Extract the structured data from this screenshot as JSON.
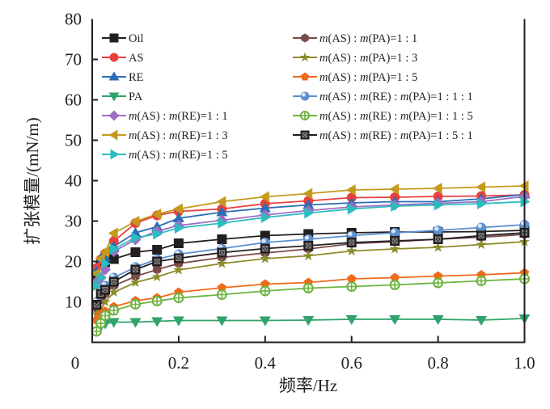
{
  "chart_data": {
    "type": "line",
    "title": "",
    "xlabel": "频率/Hz",
    "ylabel": "扩张模量/(mN/m)",
    "xlim": [
      0,
      1.0
    ],
    "ylim": [
      0,
      80
    ],
    "xticks": [
      0,
      0.2,
      0.4,
      0.6,
      0.8,
      1.0
    ],
    "xtick_labels": [
      "0",
      "0.2",
      "0.4",
      "0.6",
      "0.8",
      "1.0"
    ],
    "yticks": [
      10,
      20,
      30,
      40,
      50,
      60,
      70,
      80
    ],
    "ytick_labels": [
      "10",
      "20",
      "30",
      "40",
      "50",
      "60",
      "70",
      "80"
    ],
    "grid": false,
    "legend_position": "top",
    "x": [
      0.01,
      0.02,
      0.03,
      0.05,
      0.1,
      0.15,
      0.2,
      0.3,
      0.4,
      0.5,
      0.6,
      0.7,
      0.8,
      0.9,
      1.0
    ],
    "series": [
      {
        "name": "Oil",
        "legend_parts": [
          {
            "t": "Oil",
            "i": false
          }
        ],
        "color": "#231f20",
        "marker": "square",
        "values": [
          16.0,
          19.0,
          19.8,
          20.6,
          22.3,
          22.9,
          24.5,
          25.5,
          26.4,
          26.8,
          27.1,
          27.3,
          27.3,
          27.4,
          27.7
        ]
      },
      {
        "name": "AS",
        "legend_parts": [
          {
            "t": "AS",
            "i": false
          }
        ],
        "color": "#e8403e",
        "marker": "circle",
        "values": [
          18.4,
          20.5,
          22.0,
          25.0,
          29.5,
          31.4,
          32.4,
          33.0,
          34.3,
          35.0,
          35.8,
          35.9,
          36.1,
          36.2,
          36.5
        ]
      },
      {
        "name": "RE",
        "legend_parts": [
          {
            "t": "RE",
            "i": false
          }
        ],
        "color": "#2b6cb5",
        "marker": "triangle-up",
        "values": [
          17.5,
          20.8,
          21.0,
          23.7,
          27.1,
          28.6,
          30.7,
          32.2,
          33.2,
          34.0,
          34.5,
          34.8,
          34.8,
          35.5,
          36.6
        ]
      },
      {
        "name": "PA",
        "legend_parts": [
          {
            "t": "PA",
            "i": false
          }
        ],
        "color": "#2fa36b",
        "marker": "triangle-down",
        "values": [
          2.8,
          4.0,
          4.6,
          5.0,
          5.0,
          5.2,
          5.4,
          5.4,
          5.4,
          5.5,
          5.7,
          5.7,
          5.7,
          5.5,
          5.9
        ]
      },
      {
        "name": "m(AS):m(RE)=1:1",
        "legend_parts": [
          {
            "t": "m",
            "i": true
          },
          {
            "t": "(AS) : ",
            "i": false
          },
          {
            "t": "m",
            "i": true
          },
          {
            "t": "(RE)=1 : 1",
            "i": false
          }
        ],
        "color": "#9b6fc4",
        "marker": "diamond",
        "values": [
          15.0,
          16.0,
          18.0,
          22.5,
          25.4,
          27.5,
          28.9,
          30.2,
          31.5,
          32.6,
          33.5,
          34.0,
          34.4,
          34.8,
          36.1
        ]
      },
      {
        "name": "m(AS):m(RE)=1:3",
        "legend_parts": [
          {
            "t": "m",
            "i": true
          },
          {
            "t": "(AS) : ",
            "i": false
          },
          {
            "t": "m",
            "i": true
          },
          {
            "t": "(RE)=1 : 3",
            "i": false
          }
        ],
        "color": "#c59a1c",
        "marker": "triangle-left",
        "values": [
          17.0,
          20.7,
          22.4,
          27.0,
          29.9,
          31.7,
          33.0,
          34.8,
          36.0,
          36.8,
          37.7,
          37.9,
          38.1,
          38.4,
          38.7
        ]
      },
      {
        "name": "m(AS):m(RE)=1:5",
        "legend_parts": [
          {
            "t": "m",
            "i": true
          },
          {
            "t": "(AS) : ",
            "i": false
          },
          {
            "t": "m",
            "i": true
          },
          {
            "t": "(RE)=1 : 5",
            "i": false
          }
        ],
        "color": "#2bbcc0",
        "marker": "triangle-right",
        "values": [
          14.0,
          16.0,
          19.5,
          23.1,
          25.9,
          26.8,
          28.3,
          29.5,
          30.9,
          32.0,
          33.0,
          33.7,
          34.0,
          34.3,
          34.8
        ]
      },
      {
        "name": "m(AS):m(PA)=1:1",
        "legend_parts": [
          {
            "t": "m",
            "i": true
          },
          {
            "t": "(AS) : ",
            "i": false
          },
          {
            "t": "m",
            "i": true
          },
          {
            "t": "(PA)=1 : 1",
            "i": false
          }
        ],
        "color": "#7a4a4a",
        "marker": "hexagon",
        "values": [
          8.4,
          10.5,
          12.0,
          14.0,
          16.3,
          18.0,
          19.5,
          21.0,
          22.1,
          23.1,
          24.4,
          24.9,
          25.5,
          26.0,
          26.7
        ]
      },
      {
        "name": "m(AS):m(PA)=1:3",
        "legend_parts": [
          {
            "t": "m",
            "i": true
          },
          {
            "t": "(AS) : ",
            "i": false
          },
          {
            "t": "m",
            "i": true
          },
          {
            "t": "(PA)=1 : 3",
            "i": false
          }
        ],
        "color": "#8c8c2a",
        "marker": "star",
        "values": [
          7.0,
          8.0,
          10.0,
          12.4,
          14.8,
          16.2,
          17.9,
          19.5,
          20.7,
          21.4,
          22.6,
          23.1,
          23.5,
          24.2,
          24.9
        ]
      },
      {
        "name": "m(AS):m(PA)=1:5",
        "legend_parts": [
          {
            "t": "m",
            "i": true
          },
          {
            "t": "(AS) : ",
            "i": false
          },
          {
            "t": "m",
            "i": true
          },
          {
            "t": "(PA)=1 : 5",
            "i": false
          }
        ],
        "color": "#f06a1a",
        "marker": "pentagon",
        "values": [
          5.5,
          7.0,
          7.7,
          8.8,
          10.3,
          11.0,
          12.4,
          13.5,
          14.4,
          14.8,
          15.7,
          16.0,
          16.4,
          16.7,
          17.2
        ]
      },
      {
        "name": "m(AS):m(RE):m(PA)=1:1:1",
        "legend_parts": [
          {
            "t": "m",
            "i": true
          },
          {
            "t": "(AS) : ",
            "i": false
          },
          {
            "t": "m",
            "i": true
          },
          {
            "t": "(RE) : ",
            "i": false
          },
          {
            "t": "m",
            "i": true
          },
          {
            "t": "(PA)=1 : 1 : 1",
            "i": false
          }
        ],
        "color": "#5b8fcf",
        "marker": "sphere",
        "values": [
          10.0,
          12.5,
          14.0,
          16.0,
          18.6,
          20.6,
          21.8,
          23.2,
          24.7,
          25.5,
          26.4,
          27.1,
          27.7,
          28.4,
          29.1
        ]
      },
      {
        "name": "m(AS):m(RE):m(PA)=1:1:5",
        "legend_parts": [
          {
            "t": "m",
            "i": true
          },
          {
            "t": "(AS) : ",
            "i": false
          },
          {
            "t": "m",
            "i": true
          },
          {
            "t": "(RE) : ",
            "i": false
          },
          {
            "t": "m",
            "i": true
          },
          {
            "t": "(PA)=1 : 1 : 5",
            "i": false
          }
        ],
        "color": "#6cb43f",
        "marker": "circle-plus",
        "values": [
          2.7,
          4.7,
          6.6,
          7.9,
          9.4,
          10.2,
          11.0,
          11.8,
          12.7,
          13.4,
          13.8,
          14.2,
          14.7,
          15.2,
          15.7
        ]
      },
      {
        "name": "m(AS):m(RE):m(PA)=1:5:1",
        "legend_parts": [
          {
            "t": "m",
            "i": true
          },
          {
            "t": "(AS) : ",
            "i": false
          },
          {
            "t": "m",
            "i": true
          },
          {
            "t": "(RE) : ",
            "i": false
          },
          {
            "t": "m",
            "i": true
          },
          {
            "t": "(PA)=1 : 5 : 1",
            "i": false
          }
        ],
        "color": "#231f20",
        "marker": "square-x",
        "values": [
          9.3,
          12.0,
          13.0,
          15.0,
          18.0,
          20.0,
          20.8,
          22.2,
          23.2,
          23.9,
          24.7,
          25.1,
          25.5,
          26.4,
          27.1
        ]
      }
    ]
  }
}
